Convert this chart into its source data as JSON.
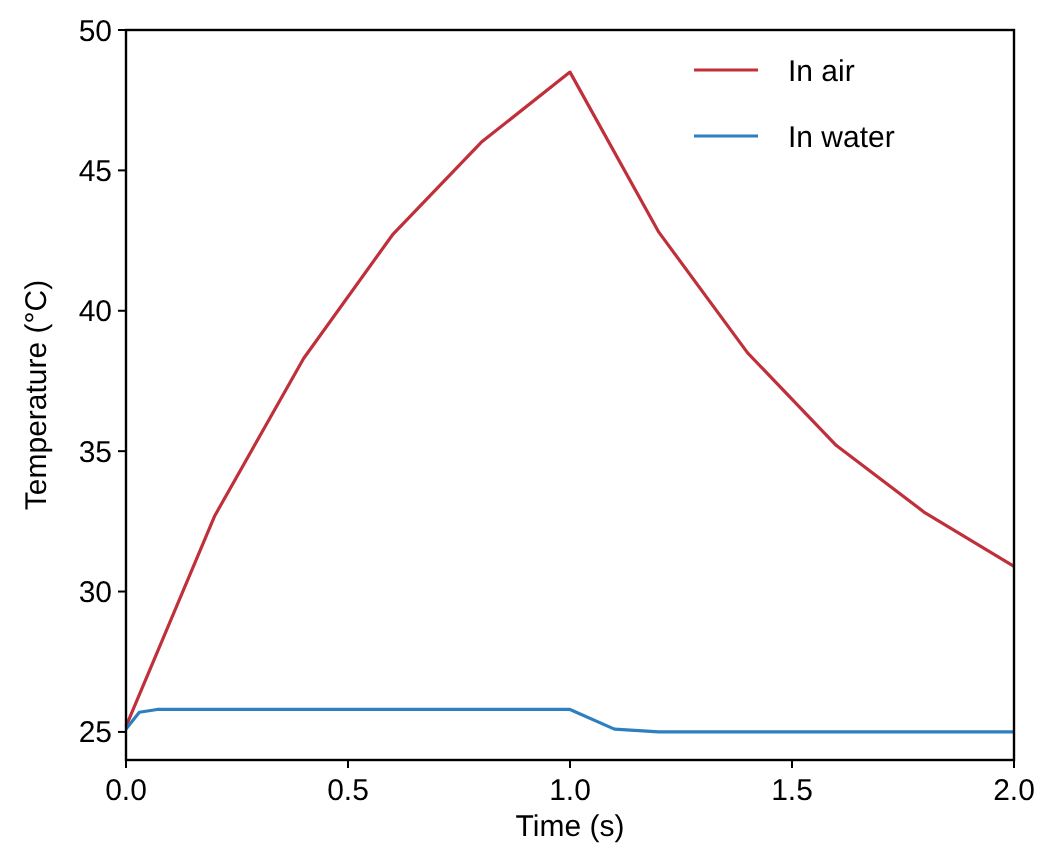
{
  "chart_data": {
    "type": "line",
    "xlabel": "Time (s)",
    "ylabel": "Temperature (°C)",
    "xlim": [
      0,
      2
    ],
    "xticks": [
      {
        "value": 0,
        "label": "0.0"
      },
      {
        "value": 0.5,
        "label": "0.5"
      },
      {
        "value": 1,
        "label": "1.0"
      },
      {
        "value": 1.5,
        "label": "1.5"
      },
      {
        "value": 2,
        "label": "2.0"
      }
    ],
    "ylim": [
      24,
      50
    ],
    "yticks": [
      25,
      30,
      35,
      40,
      45,
      50
    ],
    "grid": false,
    "legend": "top right",
    "line_style": "solid",
    "marker": "none",
    "series": [
      {
        "name": "In air",
        "color": "#c0303a",
        "x": [
          0,
          0.2,
          0.4,
          0.6,
          0.8,
          1.0,
          1.2,
          1.4,
          1.6,
          1.8,
          2.0
        ],
        "values": [
          25.2,
          32.7,
          38.3,
          42.7,
          46.0,
          48.5,
          42.8,
          38.5,
          35.2,
          32.8,
          30.9
        ]
      },
      {
        "name": "In water",
        "color": "#2e7fc0",
        "x": [
          0,
          0.03,
          0.07,
          1.0,
          1.1,
          1.2,
          1.3,
          2.0
        ],
        "values": [
          25.1,
          25.7,
          25.8,
          25.8,
          25.1,
          25.0,
          25.0,
          25.0
        ]
      }
    ]
  }
}
